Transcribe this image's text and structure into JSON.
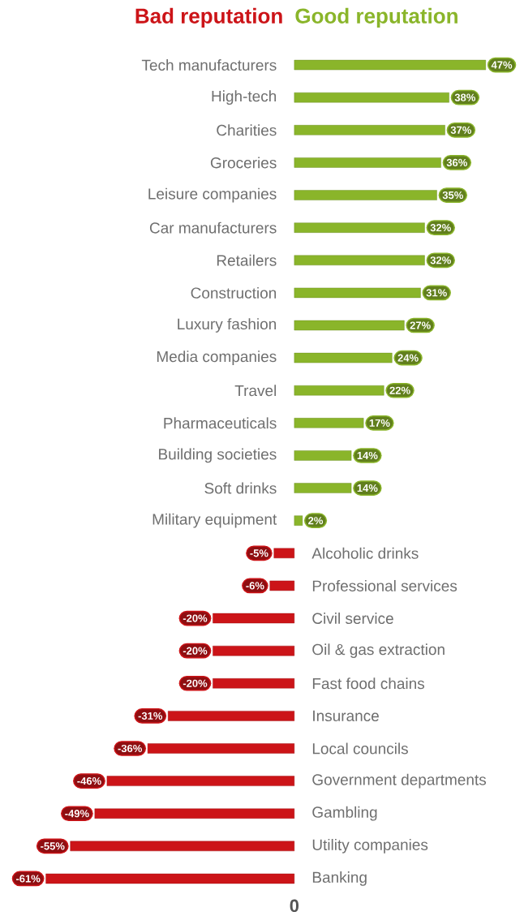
{
  "chart_data": {
    "type": "bar",
    "orientation": "horizontal",
    "categories": [
      "Tech manufacturers",
      "High-tech",
      "Charities",
      "Groceries",
      "Leisure companies",
      "Car manufacturers",
      "Retailers",
      "Construction",
      "Luxury fashion",
      "Media companies",
      "Travel",
      "Pharmaceuticals",
      "Building societies",
      "Soft drinks",
      "Military equipment",
      "Alcoholic drinks",
      "Professional services",
      "Civil service",
      "Oil & gas extraction",
      "Fast food chains",
      "Insurance",
      "Local councils",
      "Government departments",
      "Gambling",
      "Utility companies",
      "Banking"
    ],
    "series": [
      {
        "name": "Bad reputation",
        "color": "#cc1418",
        "values": [
          null,
          null,
          null,
          null,
          null,
          null,
          null,
          null,
          null,
          null,
          null,
          null,
          null,
          null,
          null,
          -5,
          -6,
          -20,
          -20,
          -20,
          -31,
          -36,
          -46,
          -49,
          -55,
          -61
        ],
        "value_labels": [
          null,
          null,
          null,
          null,
          null,
          null,
          null,
          null,
          null,
          null,
          null,
          null,
          null,
          null,
          null,
          "-5%",
          "-6%",
          "-20%",
          "-20%",
          "-20%",
          "-31%",
          "-36%",
          "-46%",
          "-49%",
          "-55%",
          "-61%"
        ]
      },
      {
        "name": "Good reputation",
        "color": "#8ab52a",
        "values": [
          47,
          38,
          37,
          36,
          35,
          32,
          32,
          31,
          27,
          24,
          22,
          17,
          14,
          14,
          2,
          null,
          null,
          null,
          null,
          null,
          null,
          null,
          null,
          null,
          null,
          null
        ],
        "value_labels": [
          "47%",
          "38%",
          "37%",
          "36%",
          "35%",
          "32%",
          "32%",
          "31%",
          "27%",
          "24%",
          "22%",
          "17%",
          "14%",
          "14%",
          "2%",
          null,
          null,
          null,
          null,
          null,
          null,
          null,
          null,
          null,
          null,
          null
        ]
      }
    ],
    "annotations": [
      "0"
    ]
  }
}
